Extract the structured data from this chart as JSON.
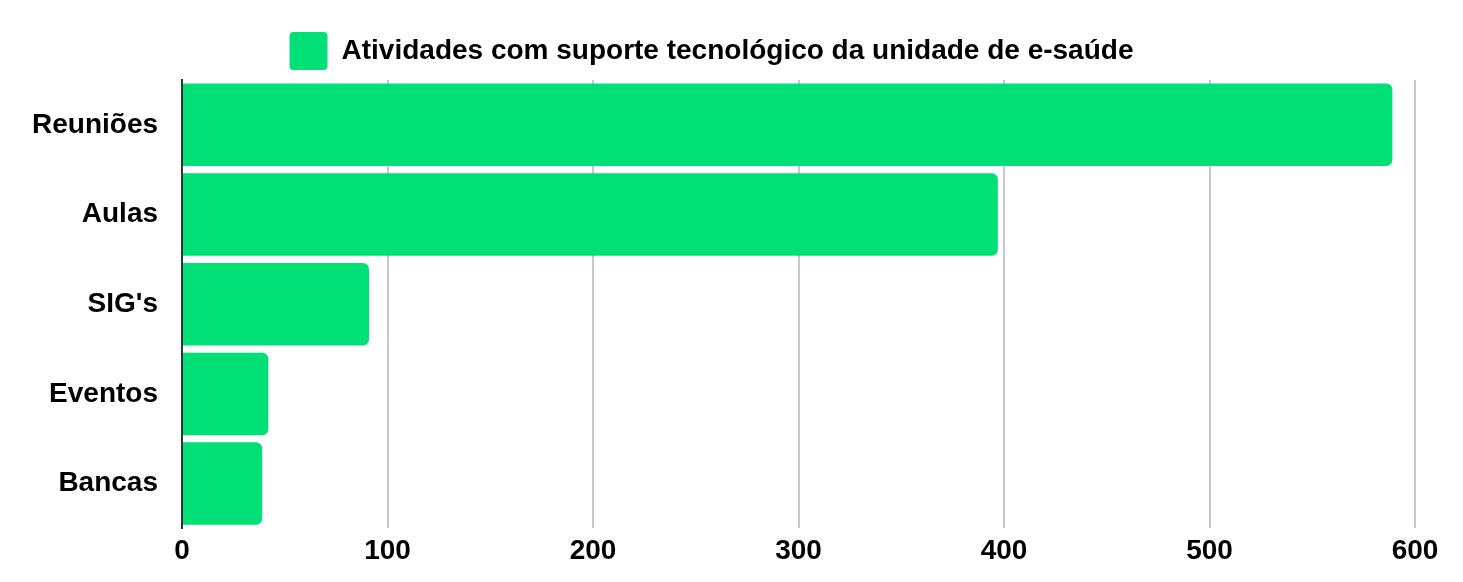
{
  "chart_data": {
    "type": "bar",
    "orientation": "horizontal",
    "categories": [
      "Reuniões",
      "Aulas",
      "SIG's",
      "Eventos",
      "Bancas"
    ],
    "series": [
      {
        "name": "Atividades com suporte tecnológico da unidade de e-saúde",
        "color": "#00e076",
        "values": [
          589,
          397,
          91,
          42,
          39
        ]
      }
    ],
    "xlim": [
      0,
      600
    ],
    "xticks": [
      0,
      100,
      200,
      300,
      400,
      500,
      600
    ],
    "grid": "x",
    "legend": "top"
  }
}
